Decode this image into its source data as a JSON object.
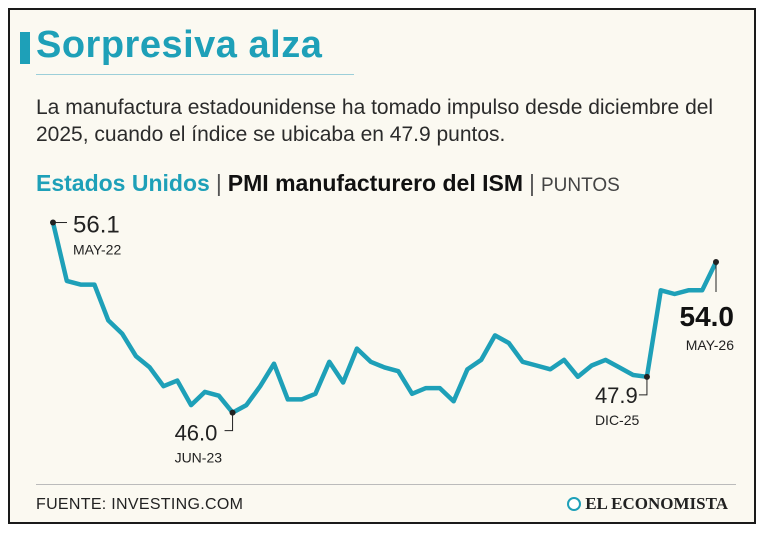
{
  "header": {
    "title": "Sorpresiva alza",
    "subtitle": "La manufactura estadounidense ha tomado impulso desde diciembre del 2025, cuando el índice se ubicaba en 47.9 puntos.",
    "country": "Estados Unidos",
    "separator": "|",
    "indicator": "PMI manufacturero del ISM",
    "units": "PUNTOS"
  },
  "footer": {
    "source": "FUENTE: INVESTING.COM",
    "brand": "EL ECONOMISTA"
  },
  "colors": {
    "accent": "#1ea0b8",
    "background": "#fbf9f1"
  },
  "chart_data": {
    "type": "line",
    "title": "PMI manufacturero del ISM",
    "ylabel": "PUNTOS",
    "ylim": [
      45.5,
      56.5
    ],
    "x_start": "MAY-22",
    "x_end": "MAY-26",
    "series": [
      {
        "name": "",
        "values": [
          56.1,
          53.0,
          52.8,
          52.8,
          50.9,
          50.2,
          49.0,
          48.4,
          47.4,
          47.7,
          46.4,
          47.1,
          46.9,
          46.0,
          46.4,
          47.4,
          48.6,
          46.7,
          46.7,
          47.0,
          48.7,
          47.6,
          49.4,
          48.7,
          48.4,
          48.2,
          47.0,
          47.3,
          47.3,
          46.6,
          48.3,
          48.8,
          50.1,
          49.7,
          48.7,
          48.5,
          48.3,
          48.8,
          47.9,
          48.5,
          48.8,
          48.4,
          48.0,
          47.9,
          52.5,
          52.3,
          52.5,
          52.5,
          54.0
        ]
      }
    ],
    "annotations": [
      {
        "value": "56.1",
        "date": "MAY-22"
      },
      {
        "value": "46.0",
        "date": "JUN-23"
      },
      {
        "value": "47.9",
        "date": "DIC-25"
      },
      {
        "value": "54.0",
        "date": "MAY-26"
      }
    ]
  }
}
